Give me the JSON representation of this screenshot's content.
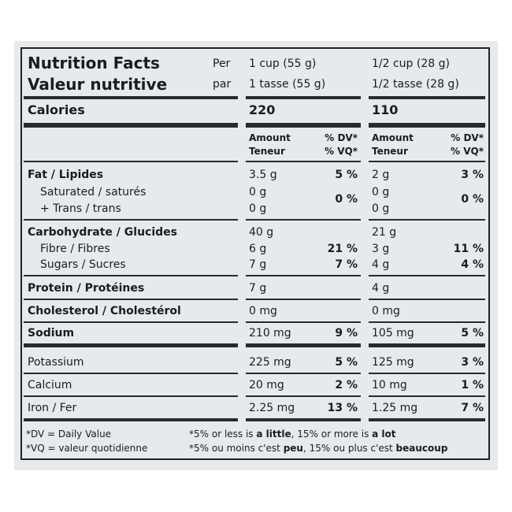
{
  "header": {
    "title_en": "Nutrition Facts",
    "title_fr": "Valeur nutritive",
    "per": "Per",
    "par": "par",
    "serving1_en": "1 cup (55 g)",
    "serving1_fr": "1 tasse (55 g)",
    "serving2_en": "1/2 cup (28 g)",
    "serving2_fr": "1/2 tasse (28 g)"
  },
  "calories": {
    "label": "Calories",
    "value1": "220",
    "value2": "110"
  },
  "columns": {
    "amount": "Amount",
    "teneur": "Teneur",
    "dv": "% DV*",
    "vq": "% VQ*"
  },
  "rows": [
    {
      "label": "Fat / Lipides",
      "a1": "3.5 g",
      "d1": "5 %",
      "a2": "2 g",
      "d2": "3 %"
    },
    {
      "label": "Saturated / saturés",
      "a1": "0 g",
      "a2": "0 g"
    },
    {
      "label": "+ Trans / trans",
      "a1": "0 g",
      "a2": "0 g"
    },
    {
      "label": "Carbohydrate / Glucides",
      "a1": "40 g",
      "a2": "21 g"
    },
    {
      "label": "Fibre / Fibres",
      "a1": "6 g",
      "d1": "21 %",
      "a2": "3 g",
      "d2": "11 %"
    },
    {
      "label": "Sugars / Sucres",
      "a1": "7 g",
      "d1": "7 %",
      "a2": "4 g",
      "d2": "4 %"
    },
    {
      "label": "Protein / Protéines",
      "a1": "7 g",
      "a2": "4 g"
    },
    {
      "label": "Cholesterol / Cholestérol",
      "a1": "0 mg",
      "a2": "0 mg"
    },
    {
      "label": "Sodium",
      "a1": "210 mg",
      "d1": "9 %",
      "a2": "105 mg",
      "d2": "5 %"
    },
    {
      "label": "Potassium",
      "a1": "225 mg",
      "d1": "5 %",
      "a2": "125 mg",
      "d2": "3 %"
    },
    {
      "label": "Calcium",
      "a1": "20 mg",
      "d1": "2 %",
      "a2": "10 mg",
      "d2": "1 %"
    },
    {
      "label": "Iron / Fer",
      "a1": "2.25 mg",
      "d1": "13 %",
      "a2": "1.25 mg",
      "d2": "7 %"
    }
  ],
  "sat_trans_dv": [
    "0 %",
    "0 %"
  ],
  "footer": {
    "dv_def": "*DV = Daily Value",
    "vq_def": "*VQ = valeur quotidienne",
    "note_en": [
      "*5% or less is ",
      "a little",
      ", 15% or more is ",
      "a lot"
    ],
    "note_fr": [
      "*5% ou moins c'est ",
      "peu",
      ", 15% ou plus c'est ",
      "beaucoup"
    ]
  }
}
